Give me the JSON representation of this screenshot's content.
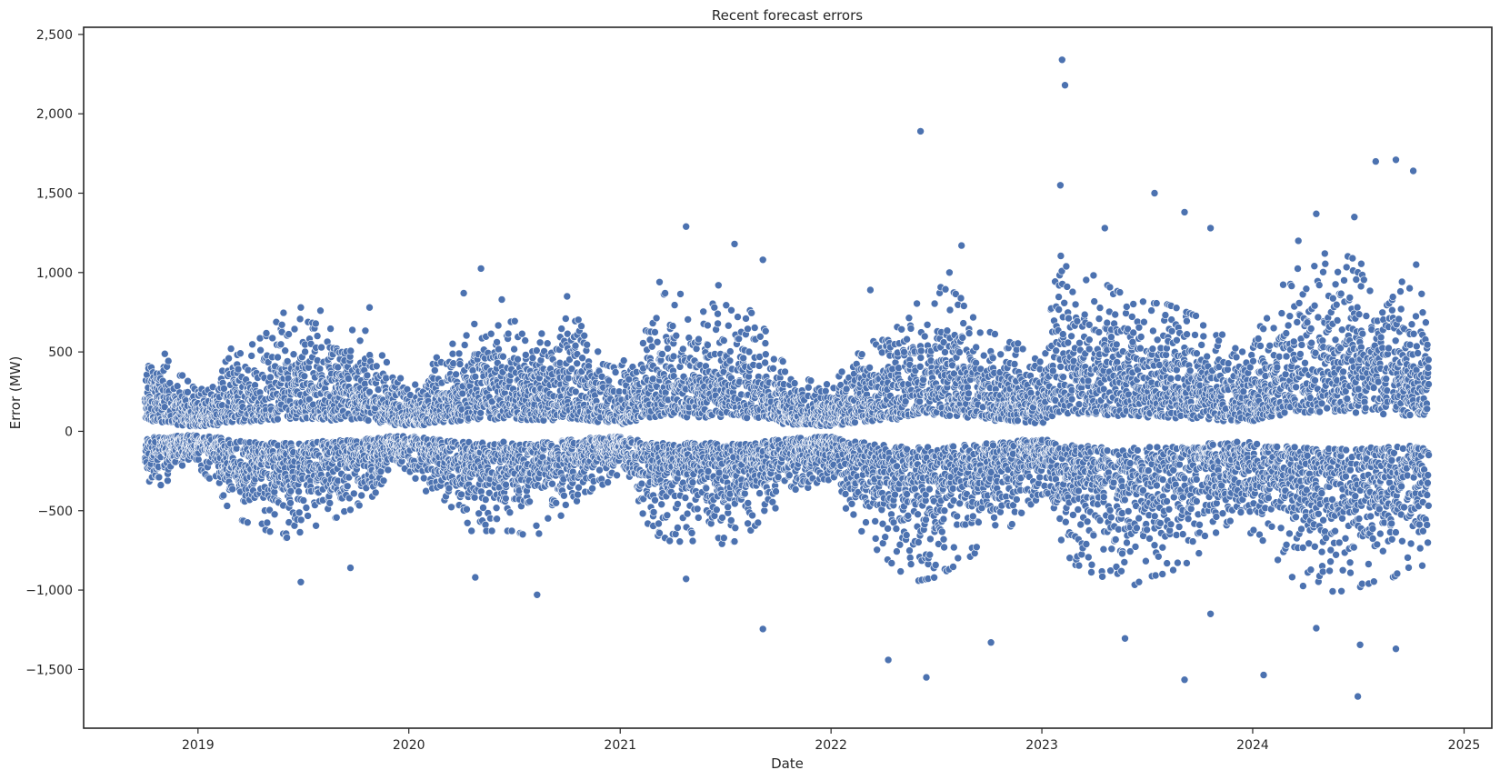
{
  "chart_data": {
    "type": "scatter",
    "title": "Recent forecast errors",
    "xlabel": "Date",
    "ylabel": "Error (MW)",
    "x_type": "date",
    "xlim": [
      "2018-06-17",
      "2025-02-18"
    ],
    "ylim": [
      -1870,
      2545
    ],
    "x_ticks": [
      "2019-01-01",
      "2020-01-01",
      "2021-01-01",
      "2022-01-01",
      "2023-01-01",
      "2024-01-01",
      "2025-01-01"
    ],
    "x_tick_labels": [
      "2019",
      "2020",
      "2021",
      "2022",
      "2023",
      "2024",
      "2025"
    ],
    "y_ticks": [
      -1500,
      -1000,
      -500,
      0,
      500,
      1000,
      1500,
      2000,
      2500
    ],
    "y_tick_labels": [
      "−1,500",
      "−1,000",
      "−500",
      "0",
      "500",
      "1,000",
      "1,500",
      "2,000",
      "2,500"
    ],
    "grid": false,
    "legend": "none",
    "series": [
      {
        "color": "#4c72b0",
        "date_range": [
          "2018-10-01",
          "2024-10-31"
        ],
        "envelope_months": [
          "2018-10",
          "2018-11",
          "2018-12",
          "2019-01",
          "2019-02",
          "2019-03",
          "2019-04",
          "2019-05",
          "2019-06",
          "2019-07",
          "2019-08",
          "2019-09",
          "2019-10",
          "2019-11",
          "2019-12",
          "2020-01",
          "2020-02",
          "2020-03",
          "2020-04",
          "2020-05",
          "2020-06",
          "2020-07",
          "2020-08",
          "2020-09",
          "2020-10",
          "2020-11",
          "2020-12",
          "2021-01",
          "2021-02",
          "2021-03",
          "2021-04",
          "2021-05",
          "2021-06",
          "2021-07",
          "2021-08",
          "2021-09",
          "2021-10",
          "2021-11",
          "2021-12",
          "2022-01",
          "2022-02",
          "2022-03",
          "2022-04",
          "2022-05",
          "2022-06",
          "2022-07",
          "2022-08",
          "2022-09",
          "2022-10",
          "2022-11",
          "2022-12",
          "2023-01",
          "2023-02",
          "2023-03",
          "2023-04",
          "2023-05",
          "2023-06",
          "2023-07",
          "2023-08",
          "2023-09",
          "2023-10",
          "2023-11",
          "2023-12",
          "2024-01",
          "2024-02",
          "2024-03",
          "2024-04",
          "2024-05",
          "2024-06",
          "2024-07",
          "2024-08",
          "2024-09",
          "2024-10"
        ],
        "envelope_upper": [
          480,
          450,
          330,
          220,
          300,
          500,
          480,
          560,
          680,
          620,
          600,
          560,
          620,
          520,
          340,
          260,
          320,
          480,
          560,
          620,
          600,
          620,
          600,
          560,
          640,
          620,
          420,
          360,
          520,
          720,
          820,
          720,
          700,
          760,
          720,
          620,
          420,
          320,
          280,
          260,
          380,
          480,
          580,
          620,
          760,
          820,
          780,
          700,
          560,
          520,
          480,
          380,
          1000,
          820,
          880,
          800,
          760,
          720,
          720,
          680,
          640,
          560,
          500,
          520,
          680,
          880,
          960,
          1000,
          1000,
          960,
          900,
          880,
          800
        ],
        "envelope_lower": [
          -320,
          -300,
          -220,
          -200,
          -300,
          -480,
          -520,
          -560,
          -600,
          -560,
          -520,
          -480,
          -440,
          -360,
          -240,
          -220,
          -340,
          -440,
          -560,
          -560,
          -560,
          -560,
          -600,
          -540,
          -440,
          -380,
          -300,
          -260,
          -420,
          -600,
          -620,
          -620,
          -600,
          -640,
          -600,
          -500,
          -420,
          -360,
          -300,
          -280,
          -460,
          -600,
          -720,
          -800,
          -840,
          -820,
          -760,
          -700,
          -620,
          -560,
          -440,
          -360,
          -640,
          -760,
          -800,
          -840,
          -880,
          -820,
          -800,
          -760,
          -680,
          -560,
          -520,
          -580,
          -720,
          -800,
          -880,
          -900,
          -900,
          -880,
          -840,
          -820,
          -760
        ],
        "outliers": [
          [
            "2019-06-28",
            780
          ],
          [
            "2019-06-28",
            -950
          ],
          [
            "2019-08-01",
            760
          ],
          [
            "2019-09-22",
            -860
          ],
          [
            "2019-10-25",
            780
          ],
          [
            "2020-04-05",
            870
          ],
          [
            "2020-04-25",
            -920
          ],
          [
            "2020-05-05",
            1025
          ],
          [
            "2020-06-10",
            830
          ],
          [
            "2020-08-10",
            -1030
          ],
          [
            "2020-10-01",
            850
          ],
          [
            "2021-03-10",
            940
          ],
          [
            "2021-04-25",
            1290
          ],
          [
            "2021-04-25",
            -930
          ],
          [
            "2021-06-20",
            920
          ],
          [
            "2021-07-18",
            1180
          ],
          [
            "2021-09-05",
            1080
          ],
          [
            "2021-09-05",
            -1245
          ],
          [
            "2022-03-10",
            890
          ],
          [
            "2022-04-10",
            -1440
          ],
          [
            "2022-06-05",
            1890
          ],
          [
            "2022-06-15",
            -1550
          ],
          [
            "2022-07-25",
            1000
          ],
          [
            "2022-08-15",
            1170
          ],
          [
            "2022-10-05",
            -1330
          ],
          [
            "2023-02-05",
            2340
          ],
          [
            "2023-02-10",
            2180
          ],
          [
            "2023-02-02",
            1550
          ],
          [
            "2023-04-20",
            1280
          ],
          [
            "2023-05-25",
            -1305
          ],
          [
            "2023-07-15",
            1500
          ],
          [
            "2023-09-05",
            -1565
          ],
          [
            "2023-09-05",
            1380
          ],
          [
            "2023-10-20",
            1280
          ],
          [
            "2023-10-20",
            -1150
          ],
          [
            "2024-01-20",
            -1535
          ],
          [
            "2024-03-20",
            1200
          ],
          [
            "2024-04-20",
            1370
          ],
          [
            "2024-04-20",
            -1240
          ],
          [
            "2024-06-25",
            1350
          ],
          [
            "2024-07-01",
            -1670
          ],
          [
            "2024-07-05",
            -1345
          ],
          [
            "2024-08-01",
            1700
          ],
          [
            "2024-09-05",
            1710
          ],
          [
            "2024-09-05",
            -1370
          ],
          [
            "2024-10-05",
            1640
          ],
          [
            "2024-10-10",
            1050
          ]
        ]
      }
    ]
  }
}
